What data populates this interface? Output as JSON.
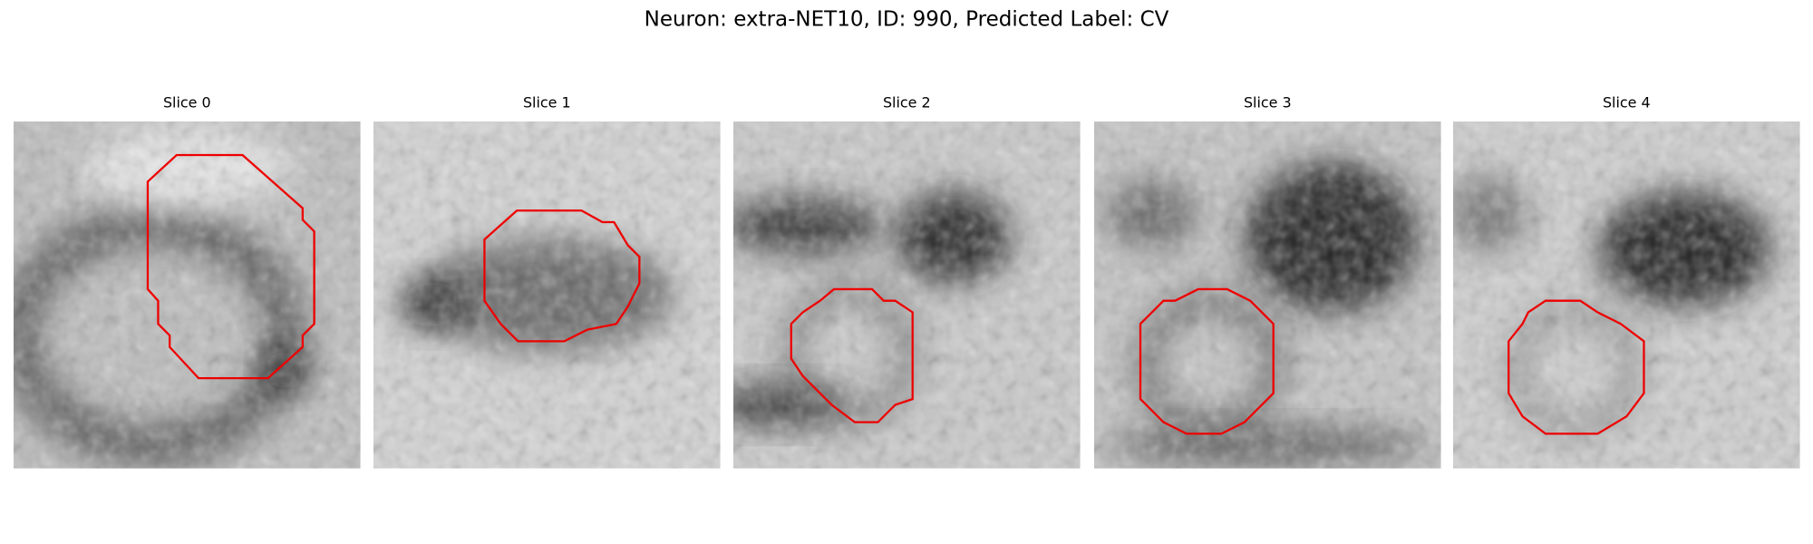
{
  "title": "Neuron: extra-NET10, ID: 990, Predicted Label: CV",
  "panels": [
    {
      "title": "Slice 0"
    },
    {
      "title": "Slice 1"
    },
    {
      "title": "Slice 2"
    },
    {
      "title": "Slice 3"
    },
    {
      "title": "Slice 4"
    }
  ]
}
